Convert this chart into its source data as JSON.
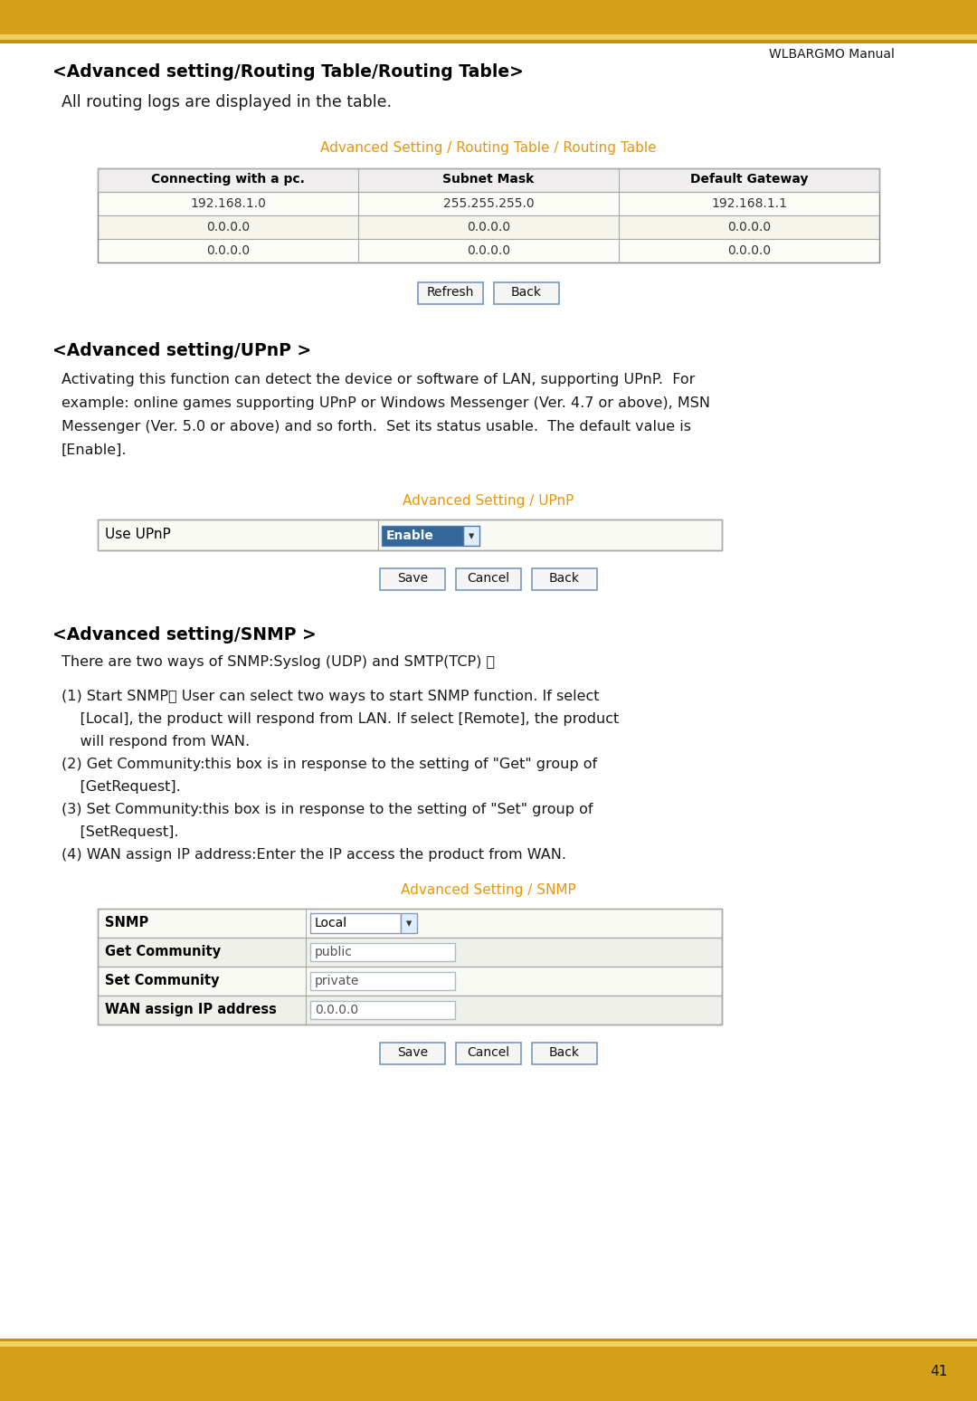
{
  "page_num": "41",
  "header_bar_color": "#D4A017",
  "header_bar_thin_color": "#E8C84A",
  "footer_bar_color": "#D4A017",
  "footer_bar_thin_color": "#E8C84A",
  "manual_title": "WLBARGMO Manual",
  "bg_color": "#FFFFFF",
  "text_color": "#000000",
  "orange_color": "#E8960C",
  "section1_heading": "<Advanced setting/Routing Table/Routing Table>",
  "section1_subtitle": "All routing logs are displayed in the table.",
  "table1_title": "Advanced Setting / Routing Table / Routing Table",
  "table1_headers": [
    "Connecting with a pc.",
    "Subnet Mask",
    "Default Gateway"
  ],
  "table1_rows": [
    [
      "192.168.1.0",
      "255.255.255.0",
      "192.168.1.1"
    ],
    [
      "0.0.0.0",
      "0.0.0.0",
      "0.0.0.0"
    ],
    [
      "0.0.0.0",
      "0.0.0.0",
      "0.0.0.0"
    ]
  ],
  "table1_buttons": [
    "Refresh",
    "Back"
  ],
  "section2_heading": "<Advanced setting/UPnP >",
  "section2_lines": [
    "Activating this function can detect the device or software of LAN, supporting UPnP.  For",
    "example: online games supporting UPnP or Windows Messenger (Ver. 4.7 or above), MSN",
    "Messenger (Ver. 5.0 or above) and so forth.  Set its status usable.  The default value is",
    "[Enable]."
  ],
  "table2_title": "Advanced Setting / UPnP",
  "table2_row": [
    "Use UPnP",
    "Enable"
  ],
  "table2_buttons": [
    "Save",
    "Cancel",
    "Back"
  ],
  "section3_heading": "<Advanced setting/SNMP >",
  "section3_subtitle": "There are two ways of SNMP:Syslog (UDP) and SMTP(TCP) 。",
  "section3_items": [
    [
      "(1) Start SNMP： User can select two ways to start SNMP function. If select",
      "    [Local], the product will respond from LAN. If select [Remote], the product",
      "    will respond from WAN."
    ],
    [
      "(2) Get Community:this box is in response to the setting of \"Get\" group of",
      "    [GetRequest]."
    ],
    [
      "(3) Set Community:this box is in response to the setting of \"Set\" group of",
      "    [SetRequest]."
    ],
    [
      "(4) WAN assign IP address:Enter the IP access the product from WAN."
    ]
  ],
  "table3_title": "Advanced Setting / SNMP",
  "table3_rows": [
    [
      "SNMP",
      "Local"
    ],
    [
      "Get Community",
      "public"
    ],
    [
      "Set Community",
      "private"
    ],
    [
      "WAN assign IP address",
      "0.0.0.0"
    ]
  ],
  "table3_buttons": [
    "Save",
    "Cancel",
    "Back"
  ]
}
